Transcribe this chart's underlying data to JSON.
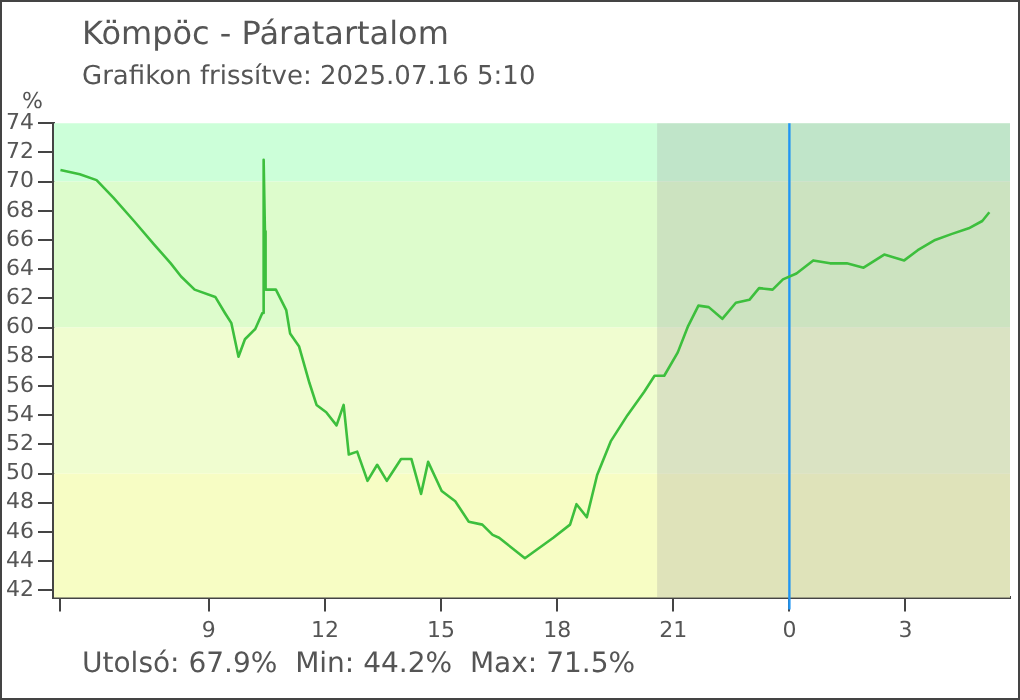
{
  "chart_data": {
    "type": "line",
    "title": "Kömpöc - Páratartalom",
    "subtitle": "Grafikon frissítve: 2025.07.16 5:10",
    "ylabel": "%",
    "annotations": [
      "Utolsó: 67.9%  Min: 44.2%  Max: 71.5%"
    ],
    "x": [
      "2025-07-15T05:10",
      "2025-07-15T05:40",
      "2025-07-15T06:06",
      "2025-07-15T06:32",
      "2025-07-15T07:04",
      "2025-07-15T07:35",
      "2025-07-15T08:01",
      "2025-07-15T08:17",
      "2025-07-15T08:38",
      "2025-07-15T09:10",
      "2025-07-15T09:25",
      "2025-07-15T09:35",
      "2025-07-15T09:46",
      "2025-07-15T09:56",
      "2025-07-15T10:12",
      "2025-07-15T10:23",
      "2025-07-15T10:25",
      "2025-07-15T10:27",
      "2025-07-15T10:28",
      "2025-07-15T10:44",
      "2025-07-15T11:00",
      "2025-07-15T11:06",
      "2025-07-15T11:20",
      "2025-07-15T11:36",
      "2025-07-15T11:47",
      "2025-07-15T12:02",
      "2025-07-15T12:18",
      "2025-07-15T12:29",
      "2025-07-15T12:37",
      "2025-07-15T12:50",
      "2025-07-15T13:06",
      "2025-07-15T13:21",
      "2025-07-15T13:36",
      "2025-07-15T13:58",
      "2025-07-15T14:14",
      "2025-07-15T14:29",
      "2025-07-15T14:40",
      "2025-07-15T15:01",
      "2025-07-15T15:22",
      "2025-07-15T15:43",
      "2025-07-15T16:04",
      "2025-07-15T16:20",
      "2025-07-15T16:30",
      "2025-07-15T17:10",
      "2025-07-15T17:54",
      "2025-07-15T18:20",
      "2025-07-15T18:30",
      "2025-07-15T18:46",
      "2025-07-15T19:02",
      "2025-07-15T19:23",
      "2025-07-15T19:49",
      "2025-07-15T20:15",
      "2025-07-15T20:31",
      "2025-07-15T20:46",
      "2025-07-15T21:07",
      "2025-07-15T21:23",
      "2025-07-15T21:39",
      "2025-07-15T21:55",
      "2025-07-15T22:16",
      "2025-07-15T22:37",
      "2025-07-15T22:58",
      "2025-07-15T23:13",
      "2025-07-15T23:34",
      "2025-07-15T23:50",
      "2025-07-16T00:11",
      "2025-07-16T00:37",
      "2025-07-16T01:03",
      "2025-07-16T01:29",
      "2025-07-16T01:55",
      "2025-07-16T02:27",
      "2025-07-16T02:58",
      "2025-07-16T03:19",
      "2025-07-16T03:46",
      "2025-07-16T04:11",
      "2025-07-16T04:38",
      "2025-07-16T04:59",
      "2025-07-16T05:10"
    ],
    "series": [
      {
        "color": "#3dbf3d",
        "values": [
          70.8,
          70.5,
          70.1,
          68.9,
          67.3,
          65.7,
          64.4,
          63.5,
          62.6,
          62.1,
          61.0,
          60.3,
          58.0,
          59.2,
          59.9,
          61.0,
          71.5,
          66.6,
          62.6,
          62.6,
          61.2,
          59.6,
          58.7,
          56.2,
          54.7,
          54.2,
          53.3,
          54.7,
          51.3,
          51.5,
          49.5,
          50.6,
          49.5,
          51.0,
          51.0,
          48.6,
          50.8,
          48.8,
          48.1,
          46.7,
          46.5,
          45.8,
          45.6,
          44.2,
          45.6,
          46.5,
          47.9,
          47.0,
          49.9,
          52.2,
          54.0,
          55.6,
          56.7,
          56.7,
          58.3,
          60.1,
          61.5,
          61.4,
          60.6,
          61.7,
          61.9,
          62.7,
          62.6,
          63.3,
          63.7,
          64.6,
          64.4,
          64.4,
          64.1,
          65.0,
          64.6,
          65.3,
          66.0,
          66.4,
          66.8,
          67.3,
          67.9
        ]
      }
    ],
    "xlim": [
      "2025-07-15T05:00",
      "2025-07-16T05:42"
    ],
    "xticks": [
      {
        "value": "2025-07-15T05:10",
        "label": null
      },
      {
        "value": "2025-07-15T09:00",
        "label": "9"
      },
      {
        "value": "2025-07-15T12:00",
        "label": "12"
      },
      {
        "value": "2025-07-15T15:00",
        "label": "15"
      },
      {
        "value": "2025-07-15T18:00",
        "label": "18"
      },
      {
        "value": "2025-07-15T21:00",
        "label": "21"
      },
      {
        "value": "2025-07-16T00:00",
        "label": "0"
      },
      {
        "value": "2025-07-16T03:00",
        "label": "3"
      }
    ],
    "ylim": [
      41.5,
      74
    ],
    "yticks": [
      42,
      44,
      46,
      48,
      50,
      52,
      54,
      56,
      58,
      60,
      62,
      64,
      66,
      68,
      70,
      72,
      74
    ],
    "grid": false,
    "legend": false,
    "ref_lines": [
      {
        "axis": "x",
        "value": "2025-07-16T00:00",
        "color": "#2196f3"
      }
    ],
    "bands": [
      {
        "axis": "y",
        "from": 70,
        "to": 74,
        "color": "#ccffd9"
      },
      {
        "axis": "y",
        "from": 60,
        "to": 70,
        "color": "#ddfccc"
      },
      {
        "axis": "y",
        "from": 50,
        "to": 60,
        "color": "#f0fdd0"
      },
      {
        "axis": "y",
        "from": 41.5,
        "to": 50,
        "color": "#f7fdc4"
      },
      {
        "axis": "x",
        "from": "2025-07-15T20:35",
        "to": "2025-07-16T05:42",
        "color": "#a0a0a0"
      }
    ]
  }
}
